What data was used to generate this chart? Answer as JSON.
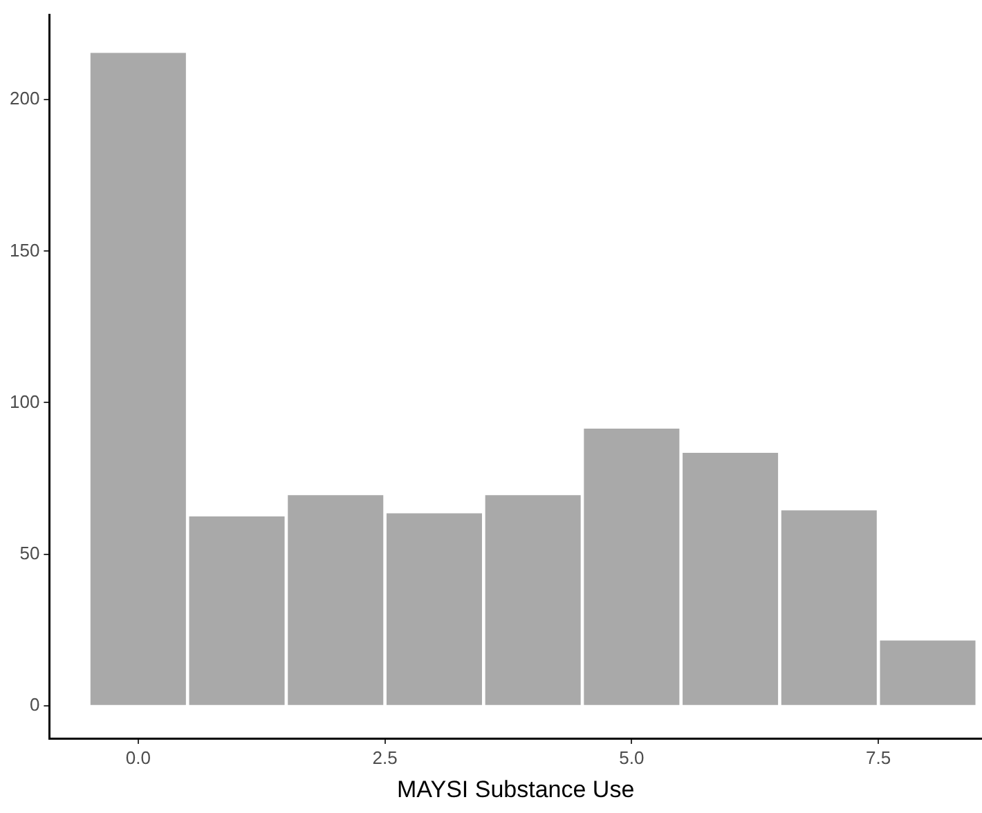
{
  "chart_data": {
    "type": "histogram",
    "xlabel": "MAYSI Substance Use",
    "bins": [
      -0.5,
      0.5,
      1.5,
      2.5,
      3.5,
      4.5,
      5.5,
      6.5,
      7.5,
      8.5
    ],
    "values": [
      216,
      63,
      70,
      64,
      70,
      92,
      84,
      65,
      22
    ],
    "color": "#a9a9a9",
    "xlim": [
      -0.9,
      8.55
    ],
    "xticks": [
      {
        "value": 0,
        "label": "0.0"
      },
      {
        "value": 2.5,
        "label": "2.5"
      },
      {
        "value": 5,
        "label": "5.0"
      },
      {
        "value": 7.5,
        "label": "7.5"
      }
    ],
    "ylim": [
      -10.8,
      228
    ],
    "yticks": [
      0,
      50,
      100,
      150,
      200
    ]
  }
}
